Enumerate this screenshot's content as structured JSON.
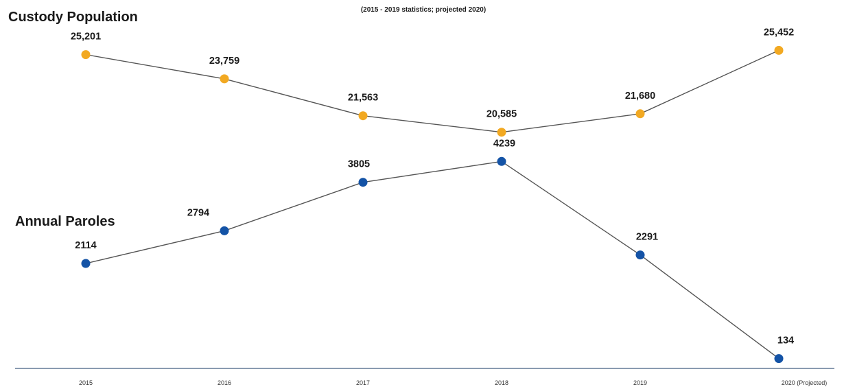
{
  "subtitle": "(2015 - 2019 statistics; projected 2020)",
  "colors": {
    "custody": "#f2a922",
    "paroles": "#1453a6",
    "line": "#555555",
    "axis": "#8a9bb0"
  },
  "chart_data": {
    "type": "line",
    "title": "",
    "subtitle": "(2015 - 2019 statistics; projected 2020)",
    "categories": [
      "2015",
      "2016",
      "2017",
      "2018",
      "2019",
      "2020 (Projected)"
    ],
    "grid": false,
    "legend": "none",
    "series": [
      {
        "name": "Custody Population",
        "values": [
          25201,
          23759,
          21563,
          20585,
          21680,
          25452
        ],
        "labels": [
          "25,201",
          "23,759",
          "21,563",
          "20,585",
          "21,680",
          "25,452"
        ],
        "color": "#f2a922",
        "ylim": [
          20000,
          26000
        ]
      },
      {
        "name": "Annual Paroles",
        "values": [
          2114,
          2794,
          3805,
          4239,
          2291,
          134
        ],
        "labels": [
          "2114",
          "2794",
          "3805",
          "4239",
          "2291",
          "134"
        ],
        "color": "#1453a6",
        "ylim": [
          0,
          4500
        ]
      }
    ]
  }
}
